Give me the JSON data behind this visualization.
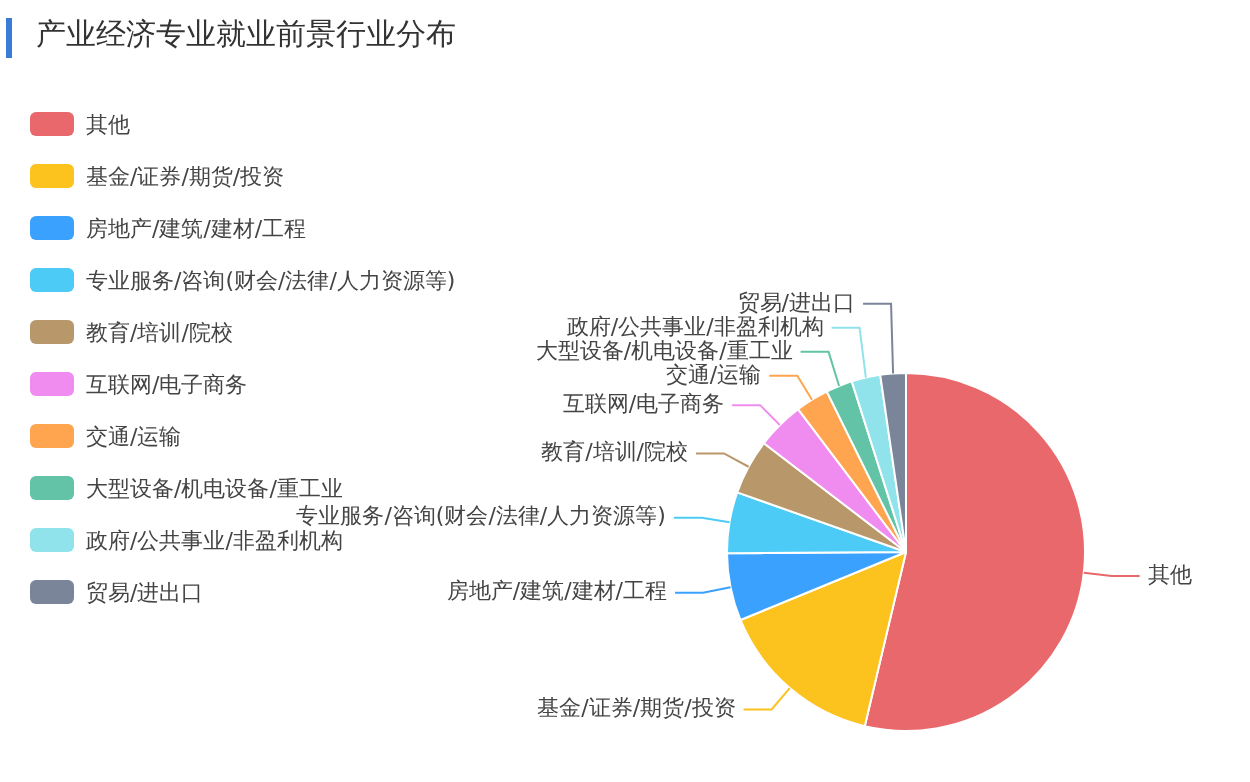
{
  "chart_data": {
    "type": "pie",
    "title": "产业经济专业就业前景行业分布",
    "categories": [
      "其他",
      "基金/证券/期货/投资",
      "房地产/建筑/建材/工程",
      "专业服务/咨询(财会/法律/人力资源等)",
      "教育/培训/院校",
      "互联网/电子商务",
      "交通/运输",
      "大型设备/机电设备/重工业",
      "政府/公共事业/非盈利机构",
      "贸易/进出口"
    ],
    "values": [
      53.7,
      15.1,
      6.1,
      5.5,
      5.0,
      4.3,
      3.0,
      2.4,
      2.6,
      2.3
    ],
    "colors": [
      "#e8686b",
      "#fcc21e",
      "#3ba1ff",
      "#4dcbf7",
      "#b8976a",
      "#f08cf0",
      "#ffa54f",
      "#62c3a6",
      "#90e3eb",
      "#7b8599"
    ],
    "legend": "left"
  }
}
